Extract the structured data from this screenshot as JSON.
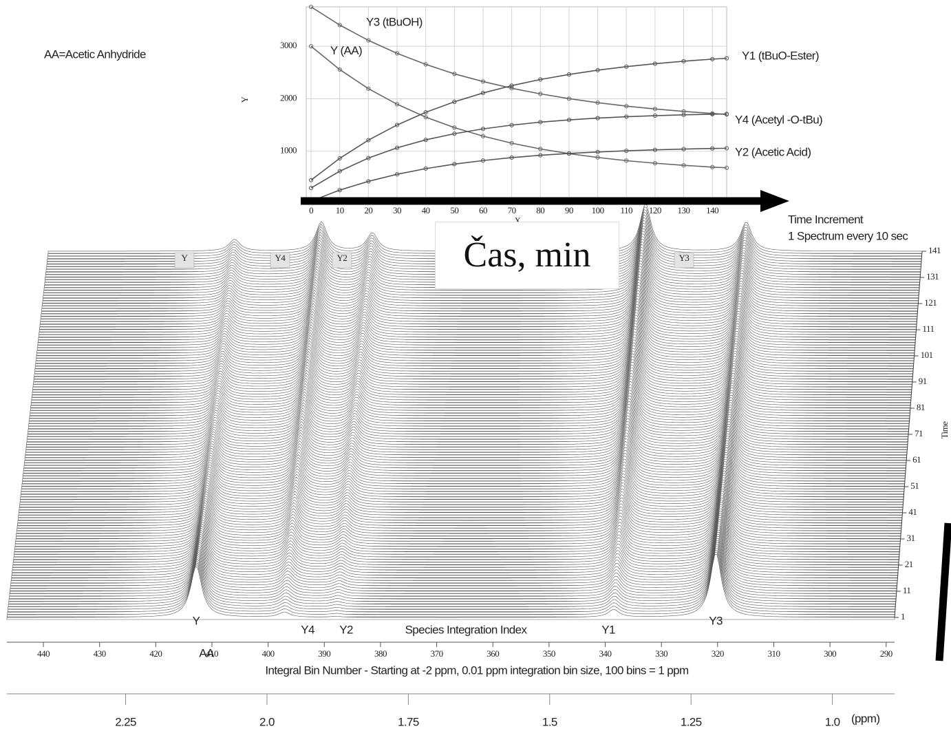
{
  "chart_data": [
    {
      "type": "line",
      "note": "AA=Acetic Anhydride",
      "arrow_label": "Čas, min",
      "xlabel": "X",
      "ylabel": "Y",
      "x": [
        0,
        10,
        20,
        30,
        40,
        50,
        60,
        70,
        80,
        90,
        100,
        110,
        120,
        130,
        140,
        145
      ],
      "xlim": [
        -1.7,
        145
      ],
      "xticks": [
        0,
        10,
        20,
        30,
        40,
        50,
        60,
        70,
        80,
        90,
        100,
        110,
        120,
        130,
        140
      ],
      "ylim": [
        0,
        3750
      ],
      "yticks": [
        1000,
        2000,
        3000
      ],
      "grid": true,
      "series": [
        {
          "name": "Y3 (tBuOH)",
          "color": "#666666",
          "values": [
            3750,
            3404,
            3112,
            2865,
            2655,
            2474,
            2328,
            2200,
            2093,
            2002,
            1925,
            1860,
            1805,
            1759,
            1720,
            1701
          ]
        },
        {
          "name": "Y (AA)",
          "color": "#666666",
          "values": [
            3000,
            2556,
            2192,
            1896,
            1650,
            1451,
            1288,
            1154,
            1044,
            955,
            882,
            821,
            772,
            732,
            698,
            685
          ]
        },
        {
          "name": "Y1 (tBuO-Ester)",
          "color": "#555555",
          "values": [
            450,
            865,
            1212,
            1500,
            1742,
            1942,
            2110,
            2250,
            2367,
            2463,
            2545,
            2612,
            2667,
            2715,
            2755,
            2770
          ]
        },
        {
          "name": "Y4 (Acetyl -O-tBu)",
          "color": "#555555",
          "values": [
            300,
            620,
            870,
            1065,
            1217,
            1334,
            1426,
            1498,
            1554,
            1597,
            1631,
            1658,
            1678,
            1694,
            1706,
            1711
          ]
        },
        {
          "name": "Y2 (Acetic Acid)",
          "color": "#555555",
          "values": [
            50,
            260,
            427,
            561,
            669,
            755,
            823,
            879,
            923,
            958,
            986,
            1009,
            1027,
            1042,
            1053,
            1057
          ]
        }
      ]
    },
    {
      "type": "waterfall",
      "xlabel": "Integral Bin Number - Starting at -2 ppm, 0.01 ppm integration bin size, 100 bins = 1 ppm",
      "xlim": [
        446.5,
        288.5
      ],
      "xticks": [
        440,
        430,
        420,
        410,
        400,
        390,
        380,
        370,
        360,
        350,
        340,
        330,
        320,
        310,
        300,
        290
      ],
      "x2lim": [
        2.46,
        0.89
      ],
      "x2ticks": [
        2.25,
        {
          "value": 2,
          "label": "2.0"
        },
        1.75,
        1.5,
        1.25,
        {
          "value": 1,
          "label": "1.0"
        }
      ],
      "x2unit": "(ppm)",
      "tlim": [
        1,
        141
      ],
      "tticks": [
        1,
        11,
        21,
        31,
        41,
        51,
        61,
        71,
        81,
        91,
        101,
        111,
        121,
        131,
        141
      ],
      "tlabel": "Time",
      "time_title": "Time Increment",
      "time_subtitle": "1 Spectrum every 10 sec",
      "index_label": "Species Integration Index",
      "aa_label": "AA",
      "peaks": [
        {
          "name": "Y3",
          "bin": 320.3
        },
        {
          "name": "Y",
          "bin": 412.8
        },
        {
          "name": "Y1",
          "bin": 338.5
        },
        {
          "name": "Y4",
          "bin": 397.1
        },
        {
          "name": "Y2",
          "bin": 387.9
        }
      ]
    }
  ]
}
